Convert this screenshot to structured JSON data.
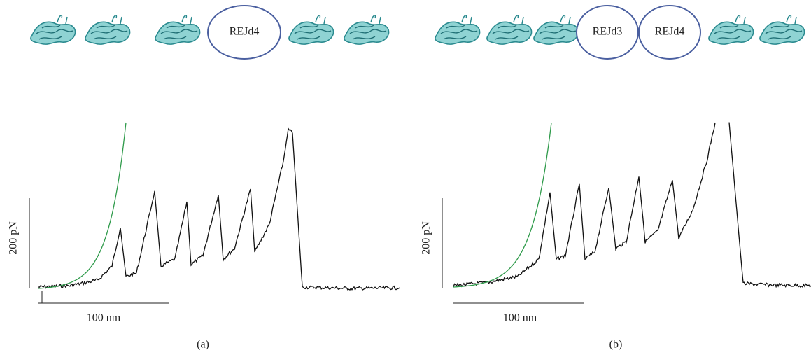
{
  "panels": [
    {
      "label": "(a)",
      "domains": [
        "REJd4"
      ],
      "force_scale": "200 pN",
      "distance_scale": "100 nm"
    },
    {
      "label": "(b)",
      "domains": [
        "REJd3",
        "REJd4"
      ],
      "force_scale": "200 pN",
      "distance_scale": "100 nm"
    }
  ]
}
